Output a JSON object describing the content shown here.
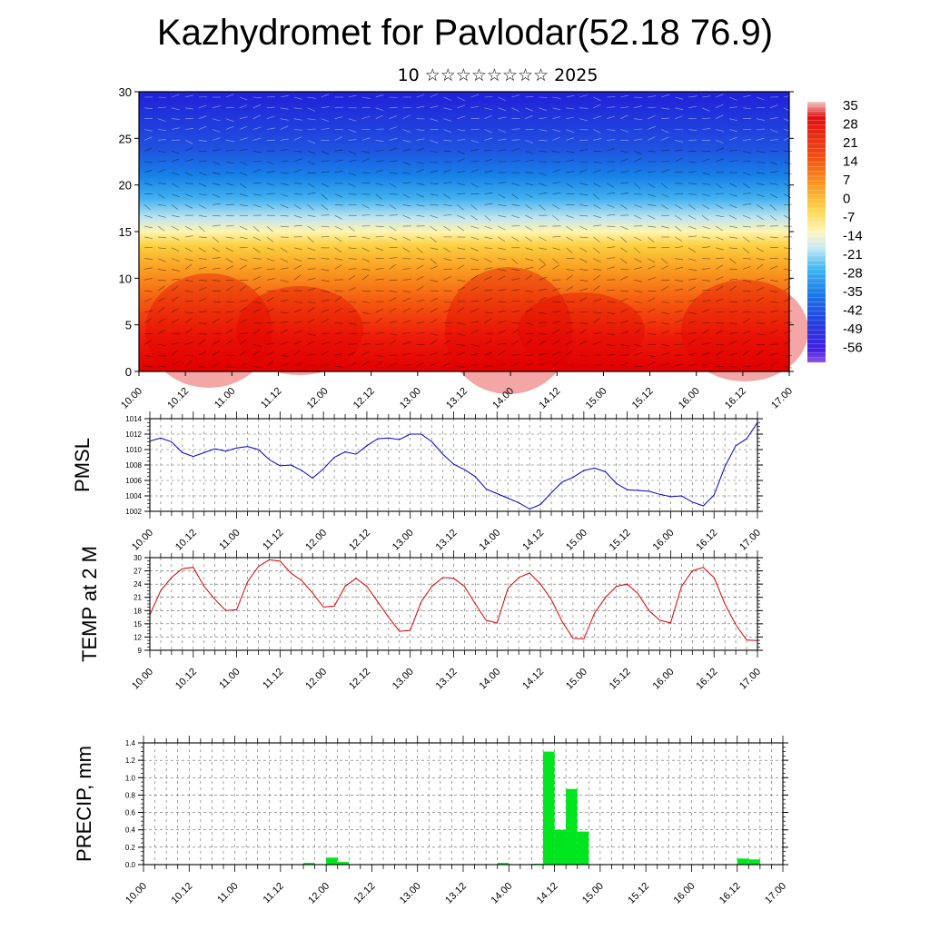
{
  "title": "Kazhydromet for Pavlodar(52.18 76.9)",
  "subtitle": "10 ☆☆☆☆☆☆☆☆ 2025",
  "time_ticks": [
    "10.00",
    "10.12",
    "11.00",
    "11.12",
    "12.00",
    "12.12",
    "13.00",
    "13.12",
    "14.00",
    "14.12",
    "15.00",
    "15.12",
    "16.00",
    "16.12",
    "17.00"
  ],
  "chart_data": [
    {
      "type": "heatmap",
      "title": "",
      "xlabel": "",
      "ylabel": "",
      "x": [
        "10.00",
        "10.12",
        "11.00",
        "11.12",
        "12.00",
        "12.12",
        "13.00",
        "13.12",
        "14.00",
        "14.12",
        "15.00",
        "15.12",
        "16.00",
        "16.12",
        "17.00"
      ],
      "ylim": [
        0,
        30
      ],
      "yticks": [
        "0",
        "5",
        "10",
        "15",
        "20",
        "25",
        "30"
      ],
      "colorbar": {
        "labels": [
          "35",
          "28",
          "21",
          "14",
          "7",
          "0",
          "-7",
          "-14",
          "-21",
          "-28",
          "-35",
          "-42",
          "-49",
          "-56"
        ],
        "colors": [
          "#f2b8b8",
          "#e01010",
          "#f04010",
          "#f87818",
          "#fca828",
          "#fde060",
          "#fff4b0",
          "#c8e8f0",
          "#60c0f0",
          "#1890e8",
          "#2060e0",
          "#2840e0",
          "#3020e0",
          "#8040e0"
        ]
      },
      "note": "temperature (color) with wind barbs vs height"
    },
    {
      "type": "line",
      "ylabel": "PMSL",
      "ylim": [
        1002,
        1014
      ],
      "yticks": [
        "1002",
        "1004",
        "1006",
        "1008",
        "1010",
        "1012",
        "1014"
      ],
      "series": [
        {
          "color": "#0000dd",
          "x": [
            0,
            3,
            6,
            9,
            12,
            15,
            18,
            21,
            24,
            27,
            30,
            33,
            36,
            39,
            42,
            45,
            48,
            51,
            54,
            57,
            60,
            63,
            66,
            69,
            72,
            75,
            78,
            81,
            84,
            87,
            90,
            93,
            96,
            99,
            102,
            105,
            108,
            111,
            114,
            117,
            120,
            123,
            126,
            129,
            132,
            135,
            138,
            141,
            144,
            147,
            150,
            153,
            156,
            159,
            162,
            165,
            168
          ],
          "values": [
            1011.1,
            1011.5,
            1011.0,
            1009.6,
            1009.1,
            1009.6,
            1010.1,
            1009.8,
            1010.2,
            1010.4,
            1010.0,
            1008.7,
            1007.9,
            1008.0,
            1007.3,
            1006.3,
            1007.5,
            1009.0,
            1009.7,
            1009.4,
            1010.5,
            1011.4,
            1011.5,
            1011.3,
            1012.0,
            1012.0,
            1011.0,
            1009.4,
            1008.1,
            1007.4,
            1006.5,
            1004.9,
            1004.3,
            1003.7,
            1003.1,
            1002.3,
            1002.9,
            1004.4,
            1005.8,
            1006.4,
            1007.3,
            1007.6,
            1007.1,
            1005.6,
            1004.8,
            1004.7,
            1004.6,
            1004.2,
            1003.9,
            1004.0,
            1003.2,
            1002.7,
            1004.1,
            1007.8,
            1010.5,
            1011.4,
            1013.5
          ]
        }
      ]
    },
    {
      "type": "line",
      "ylabel": "TEMP at 2 M",
      "ylim": [
        9,
        30
      ],
      "yticks": [
        "9",
        "12",
        "15",
        "18",
        "21",
        "24",
        "27",
        "30"
      ],
      "series": [
        {
          "color": "#dd0000",
          "x": [
            0,
            3,
            6,
            9,
            12,
            15,
            18,
            21,
            24,
            27,
            30,
            33,
            36,
            39,
            42,
            45,
            48,
            51,
            54,
            57,
            60,
            63,
            66,
            69,
            72,
            75,
            78,
            81,
            84,
            87,
            90,
            93,
            96,
            99,
            102,
            105,
            108,
            111,
            114,
            117,
            120,
            123,
            126,
            129,
            132,
            135,
            138,
            141,
            144,
            147,
            150,
            153,
            156,
            159,
            162,
            165,
            168
          ],
          "values": [
            17.0,
            22.5,
            25.5,
            27.5,
            27.8,
            23.5,
            20.5,
            18.0,
            18.2,
            24.5,
            28.0,
            29.5,
            29.2,
            26.5,
            24.8,
            22.0,
            18.8,
            19.0,
            23.5,
            25.3,
            23.5,
            20.0,
            16.5,
            13.3,
            13.5,
            20.0,
            23.5,
            25.5,
            25.3,
            23.5,
            19.5,
            15.8,
            15.2,
            23.0,
            25.5,
            26.5,
            24.0,
            20.5,
            15.5,
            11.7,
            11.6,
            17.5,
            21.0,
            23.5,
            24.0,
            21.8,
            18.0,
            15.8,
            15.2,
            23.5,
            27.0,
            27.8,
            25.5,
            19.5,
            14.8,
            11.3,
            11.2
          ]
        }
      ]
    },
    {
      "type": "bar",
      "ylabel": "PRECIP, mm",
      "ylim": [
        0,
        1.4
      ],
      "yticks": [
        "0.0",
        "0.2",
        "0.4",
        "0.6",
        "0.8",
        "1.0",
        "1.2",
        "1.4"
      ],
      "color": "#00e61e",
      "x": [
        0,
        3,
        6,
        9,
        12,
        15,
        18,
        21,
        24,
        27,
        30,
        33,
        36,
        39,
        42,
        45,
        48,
        51,
        54,
        57,
        60,
        63,
        66,
        69,
        72,
        75,
        78,
        81,
        84,
        87,
        90,
        93,
        96,
        99,
        102,
        105,
        108,
        111,
        114,
        117,
        120,
        123,
        126,
        129,
        132,
        135,
        138,
        141,
        144,
        147,
        150,
        153,
        156,
        159,
        162,
        165
      ],
      "values": [
        0,
        0,
        0,
        0,
        0,
        0,
        0,
        0,
        0,
        0,
        0,
        0,
        0,
        0,
        0.02,
        0,
        0.08,
        0.03,
        0,
        0,
        0,
        0,
        0,
        0,
        0,
        0,
        0,
        0,
        0,
        0,
        0,
        0.02,
        0,
        0,
        0.01,
        1.3,
        0.4,
        0.87,
        0.38,
        0,
        0,
        0,
        0,
        0,
        0,
        0,
        0,
        0,
        0,
        0,
        0,
        0,
        0.07,
        0.06,
        0,
        0
      ]
    }
  ]
}
